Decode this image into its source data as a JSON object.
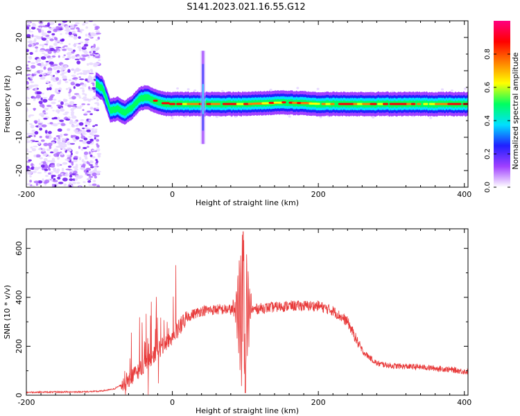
{
  "title": "S141.2023.021.16.55.G12",
  "chart_data": [
    {
      "type": "heatmap",
      "xlabel": "Height of straight line (km)",
      "ylabel": "Frequency (Hz)",
      "xlim": [
        -200,
        405
      ],
      "ylim": [
        -25,
        25
      ],
      "x_ticks": [
        -200,
        0,
        200,
        400
      ],
      "y_ticks": [
        -20,
        -10,
        0,
        10,
        20
      ],
      "colorbar": {
        "label": "Normalized spectral amplitude",
        "range": [
          0,
          1
        ],
        "ticks": [
          0.0,
          0.2,
          0.4,
          0.6,
          0.8
        ],
        "colors": [
          "#ffffff",
          "#a040ff",
          "#2020ff",
          "#00e0ff",
          "#00ff60",
          "#ffff00",
          "#ff8000",
          "#ff0000",
          "#ff0080"
        ]
      },
      "ridge": {
        "x": [
          -105,
          -95,
          -85,
          -75,
          -65,
          -55,
          -45,
          -35,
          -25,
          -10,
          20,
          40,
          60,
          100,
          150,
          200,
          250,
          300,
          350,
          400
        ],
        "y": [
          6,
          4.5,
          -2,
          -1.5,
          -2.5,
          -1,
          1.5,
          2,
          1,
          0,
          0,
          0,
          0,
          0,
          0.5,
          0,
          0,
          0,
          0,
          0
        ]
      },
      "noise_region_x": [
        -200,
        -100
      ],
      "spike_x": 42
    },
    {
      "type": "line",
      "xlabel": "Height of straight line (km)",
      "ylabel": "SNR (10 * v/v)",
      "xlim": [
        -200,
        405
      ],
      "ylim": [
        0,
        680
      ],
      "x_ticks": [
        -200,
        0,
        200,
        400
      ],
      "y_ticks": [
        0,
        200,
        400,
        600
      ],
      "color": "#e83a3a",
      "envelope": {
        "x": [
          -200,
          -120,
          -100,
          -80,
          -60,
          -40,
          -20,
          0,
          20,
          40,
          60,
          80,
          100,
          120,
          140,
          160,
          180,
          200,
          220,
          240,
          260,
          280,
          300,
          340,
          380,
          405
        ],
        "y": [
          12,
          14,
          16,
          25,
          60,
          120,
          180,
          240,
          320,
          345,
          350,
          350,
          345,
          355,
          360,
          365,
          365,
          365,
          345,
          300,
          180,
          130,
          120,
          115,
          105,
          95
        ]
      },
      "peak": {
        "x": 97,
        "y": 668
      }
    }
  ]
}
